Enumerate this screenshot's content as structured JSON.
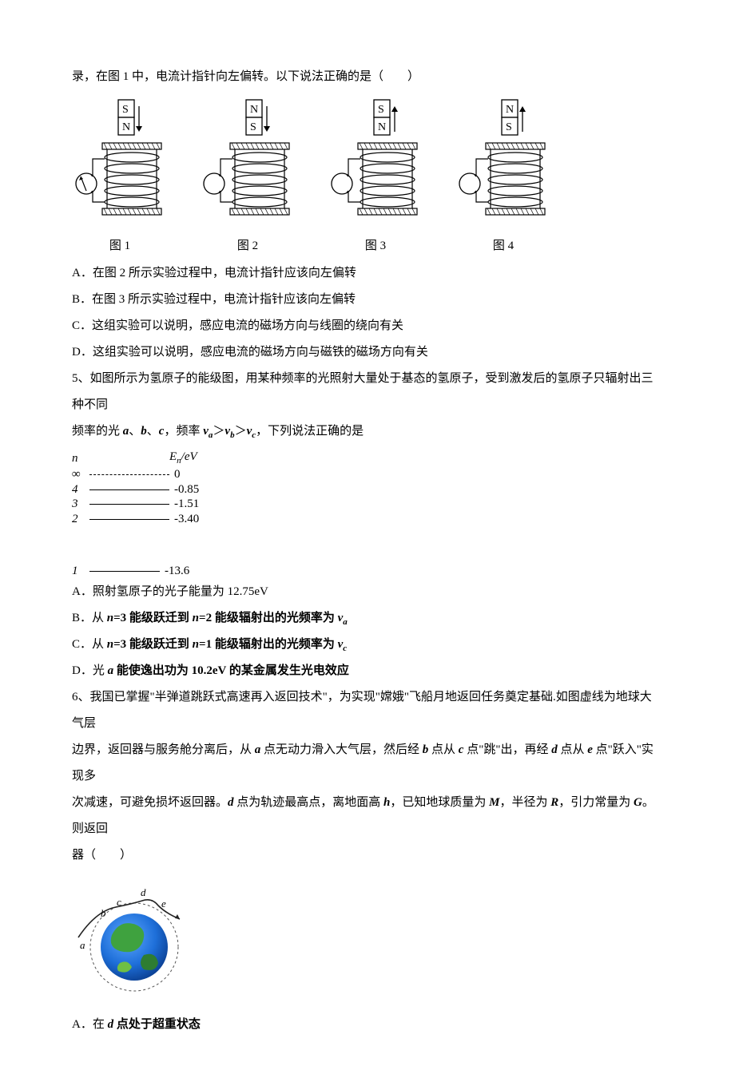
{
  "intro_line": "录，在图 1 中，电流计指针向左偏转。以下说法正确的是（　　）",
  "coils": {
    "figs": [
      {
        "top": "S",
        "bottom": "N",
        "arrow": "down",
        "meter_needle": true,
        "label": "图 1"
      },
      {
        "top": "N",
        "bottom": "S",
        "arrow": "down",
        "meter_needle": false,
        "label": "图 2"
      },
      {
        "top": "S",
        "bottom": "N",
        "arrow": "up",
        "meter_needle": false,
        "label": "图 3"
      },
      {
        "top": "N",
        "bottom": "S",
        "arrow": "up",
        "meter_needle": false,
        "label": "图 4"
      }
    ],
    "colors": {
      "stroke": "#000000",
      "fill": "#ffffff"
    }
  },
  "q4_options": {
    "A": "A．在图 2 所示实验过程中，电流计指针应该向左偏转",
    "B": "B．在图 3 所示实验过程中，电流计指针应该向左偏转",
    "C": "C．这组实验可以说明，感应电流的磁场方向与线圈的绕向有关",
    "D": "D．这组实验可以说明，感应电流的磁场方向与磁铁的磁场方向有关"
  },
  "q5": {
    "stem1": "5、如图所示为氢原子的能级图，用某种频率的光照射大量处于基态的氢原子，受到激发后的氢原子只辐射出三种不同",
    "stem2_pre": "频率的光 ",
    "stem2_a": "a",
    "stem2_sep1": "、",
    "stem2_b": "b",
    "stem2_sep2": "、",
    "stem2_c": "c",
    "stem2_mid": "，频率 ",
    "va": "v",
    "va_sub": "a",
    "gt1": "＞",
    "vb": "v",
    "vb_sub": "b",
    "gt2": "＞",
    "vc": "v",
    "vc_sub": "c",
    "stem2_tail": "，下列说法正确的是"
  },
  "energy": {
    "header_n": "n",
    "header_E": "Eₙ/eV",
    "levels": [
      {
        "n": "∞",
        "val": "0",
        "dash": true,
        "line_w": 100
      },
      {
        "n": "4",
        "val": "-0.85",
        "dash": false,
        "line_w": 100
      },
      {
        "n": "3",
        "val": "-1.51",
        "dash": false,
        "line_w": 100
      },
      {
        "n": "2",
        "val": "-3.40",
        "dash": false,
        "line_w": 100
      }
    ],
    "gap_level": {
      "n": "1",
      "val": "-13.6",
      "line_w": 88
    }
  },
  "q5_options": {
    "A": "A．照射氢原子的光子能量为 12.75eV",
    "B_pre": "B．从 ",
    "B_n1": "n",
    "B_mid1": "=3 能级跃迁到 ",
    "B_n2": "n",
    "B_mid2": "=2 能级辐射出的光频率为 ",
    "B_v": "v",
    "B_sub": "a",
    "C_pre": "C．从 ",
    "C_n1": "n",
    "C_mid1": "=3 能级跃迁到 ",
    "C_n2": "n",
    "C_mid2": "=1 能级辐射出的光频率为 ",
    "C_v": "v",
    "C_sub": "c",
    "D_pre": "D．光 ",
    "D_a": "a",
    "D_tail": " 能使逸出功为 10.2eV 的某金属发生光电效应"
  },
  "q6": {
    "l1": "6、我国已掌握\"半弹道跳跃式高速再入返回技术\"，为实现\"嫦娥\"飞船月地返回任务奠定基础.如图虚线为地球大气层",
    "l2_pre": "边界，返回器与服务舱分离后，从 ",
    "l2_a": "a",
    "l2_m1": " 点无动力滑入大气层，然后经 ",
    "l2_b": "b",
    "l2_m2": " 点从 ",
    "l2_c": "c",
    "l2_m3": " 点\"跳\"出，再经 ",
    "l2_d": "d",
    "l2_m4": " 点从 ",
    "l2_e": "e",
    "l2_m5": " 点\"跃入\"实现多",
    "l3_pre": "次减速，可避免损坏返回器。",
    "l3_d": "d",
    "l3_m1": " 点为轨迹最高点，离地面高 ",
    "l3_h": "h",
    "l3_m2": "，已知地球质量为 ",
    "l3_M": "M",
    "l3_m3": "，半径为 ",
    "l3_R": "R",
    "l3_m4": "，引力常量为 ",
    "l3_G": "G",
    "l3_m5": "。则返回",
    "l4": "器（　　）"
  },
  "earth": {
    "labels": {
      "a": "a",
      "b": "b",
      "c": "c",
      "d": "d",
      "e": "e"
    },
    "colors": {
      "ocean1": "#0a3d8f",
      "ocean2": "#1e6fd9",
      "land1": "#2e7d32",
      "land2": "#6fbf44",
      "dash": "#555555",
      "trace": "#222222"
    }
  },
  "q6_options": {
    "A_pre": "A．在 ",
    "A_d": "d",
    "A_tail": " 点处于超重状态"
  }
}
